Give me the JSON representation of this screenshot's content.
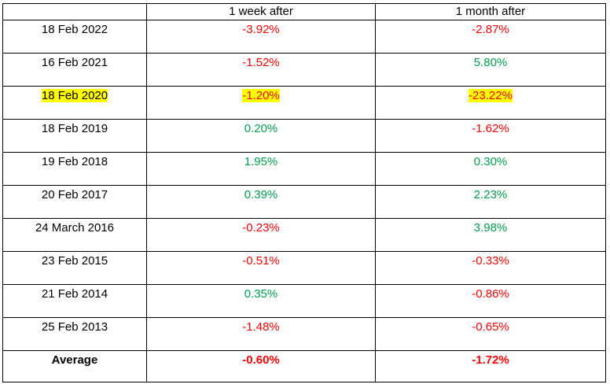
{
  "table": {
    "headers": [
      "",
      "1 week after",
      "1 month after"
    ],
    "rows": [
      {
        "date": "18 Feb 2022",
        "week": "-3.92%",
        "month": "-2.87%"
      },
      {
        "date": "16 Feb 2021",
        "week": "-1.52%",
        "month": "5.80%"
      },
      {
        "date": "18 Feb 2020",
        "week": "-1.20%",
        "month": "-23.22%"
      },
      {
        "date": "18 Feb 2019",
        "week": "0.20%",
        "month": "-1.62%"
      },
      {
        "date": "19 Feb 2018",
        "week": "1.95%",
        "month": "0.30%"
      },
      {
        "date": "20 Feb 2017",
        "week": "0.39%",
        "month": "2.23%"
      },
      {
        "date": "24 March 2016",
        "week": "-0.23%",
        "month": "3.98%"
      },
      {
        "date": "23 Feb 2015",
        "week": "-0.51%",
        "month": "-0.33%"
      },
      {
        "date": "21 Feb 2014",
        "week": "0.35%",
        "month": "-0.86%"
      },
      {
        "date": "25 Feb 2013",
        "week": "-1.48%",
        "month": "-0.65%"
      }
    ],
    "average": {
      "label": "Average",
      "week": "-0.60%",
      "month": "-1.72%"
    }
  },
  "colors": {
    "negative": "#ff0000",
    "positive": "#00a04e",
    "highlight": "#ffff00"
  }
}
